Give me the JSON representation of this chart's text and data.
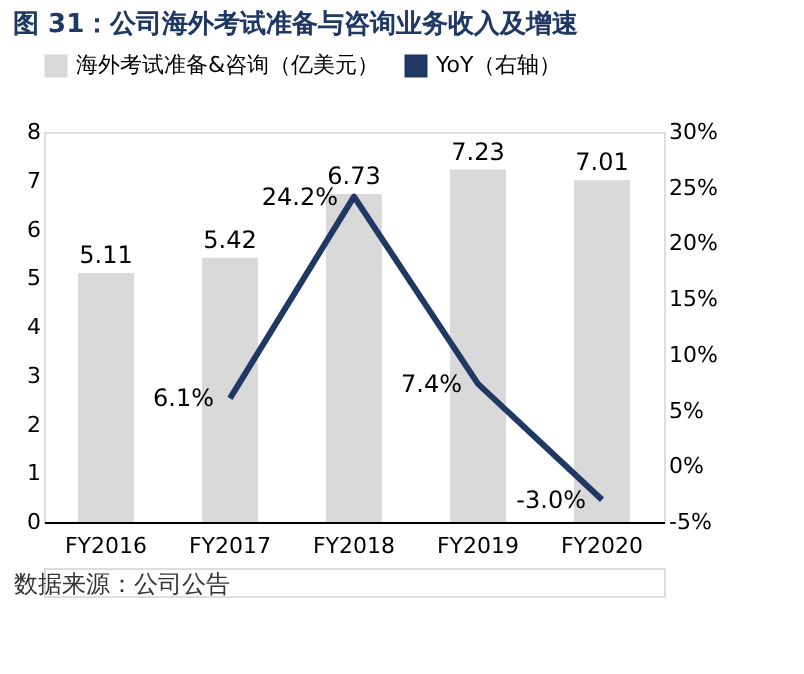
{
  "chart_data": {
    "type": "bar",
    "title": "图 31：公司海外考试准备与咨询业务收入及增速",
    "categories": [
      "FY2016",
      "FY2017",
      "FY2018",
      "FY2019",
      "FY2020"
    ],
    "series": [
      {
        "name": "海外考试准备&咨询（亿美元）",
        "color": "#d9d9d9",
        "values": [
          5.11,
          5.42,
          6.73,
          7.23,
          7.01
        ],
        "value_labels": [
          "5.11",
          "5.42",
          "6.73",
          "7.23",
          "7.01"
        ]
      },
      {
        "name": "YoY（右轴）",
        "type": "line",
        "axis": "y2",
        "color": "#1f3864",
        "values": [
          null,
          6.1,
          24.2,
          7.4,
          -3.0
        ],
        "value_labels": [
          null,
          "6.1%",
          "24.2%",
          "7.4%",
          "-3.0%"
        ]
      }
    ],
    "ylim": [
      0,
      8
    ],
    "yticks": [
      0,
      1,
      2,
      3,
      4,
      5,
      6,
      7,
      8
    ],
    "y2lim": [
      -5,
      30
    ],
    "y2ticks": [
      {
        "value": -5,
        "label": "-5%"
      },
      {
        "value": 0,
        "label": "0%"
      },
      {
        "value": 5,
        "label": "5%"
      },
      {
        "value": 10,
        "label": "10%"
      },
      {
        "value": 15,
        "label": "15%"
      },
      {
        "value": 20,
        "label": "20%"
      },
      {
        "value": 25,
        "label": "25%"
      },
      {
        "value": 30,
        "label": "30%"
      }
    ],
    "grid": false,
    "legend": "top",
    "line_style": "solid",
    "marker": "none",
    "annotations": [
      "数据来源：公司公告"
    ]
  }
}
